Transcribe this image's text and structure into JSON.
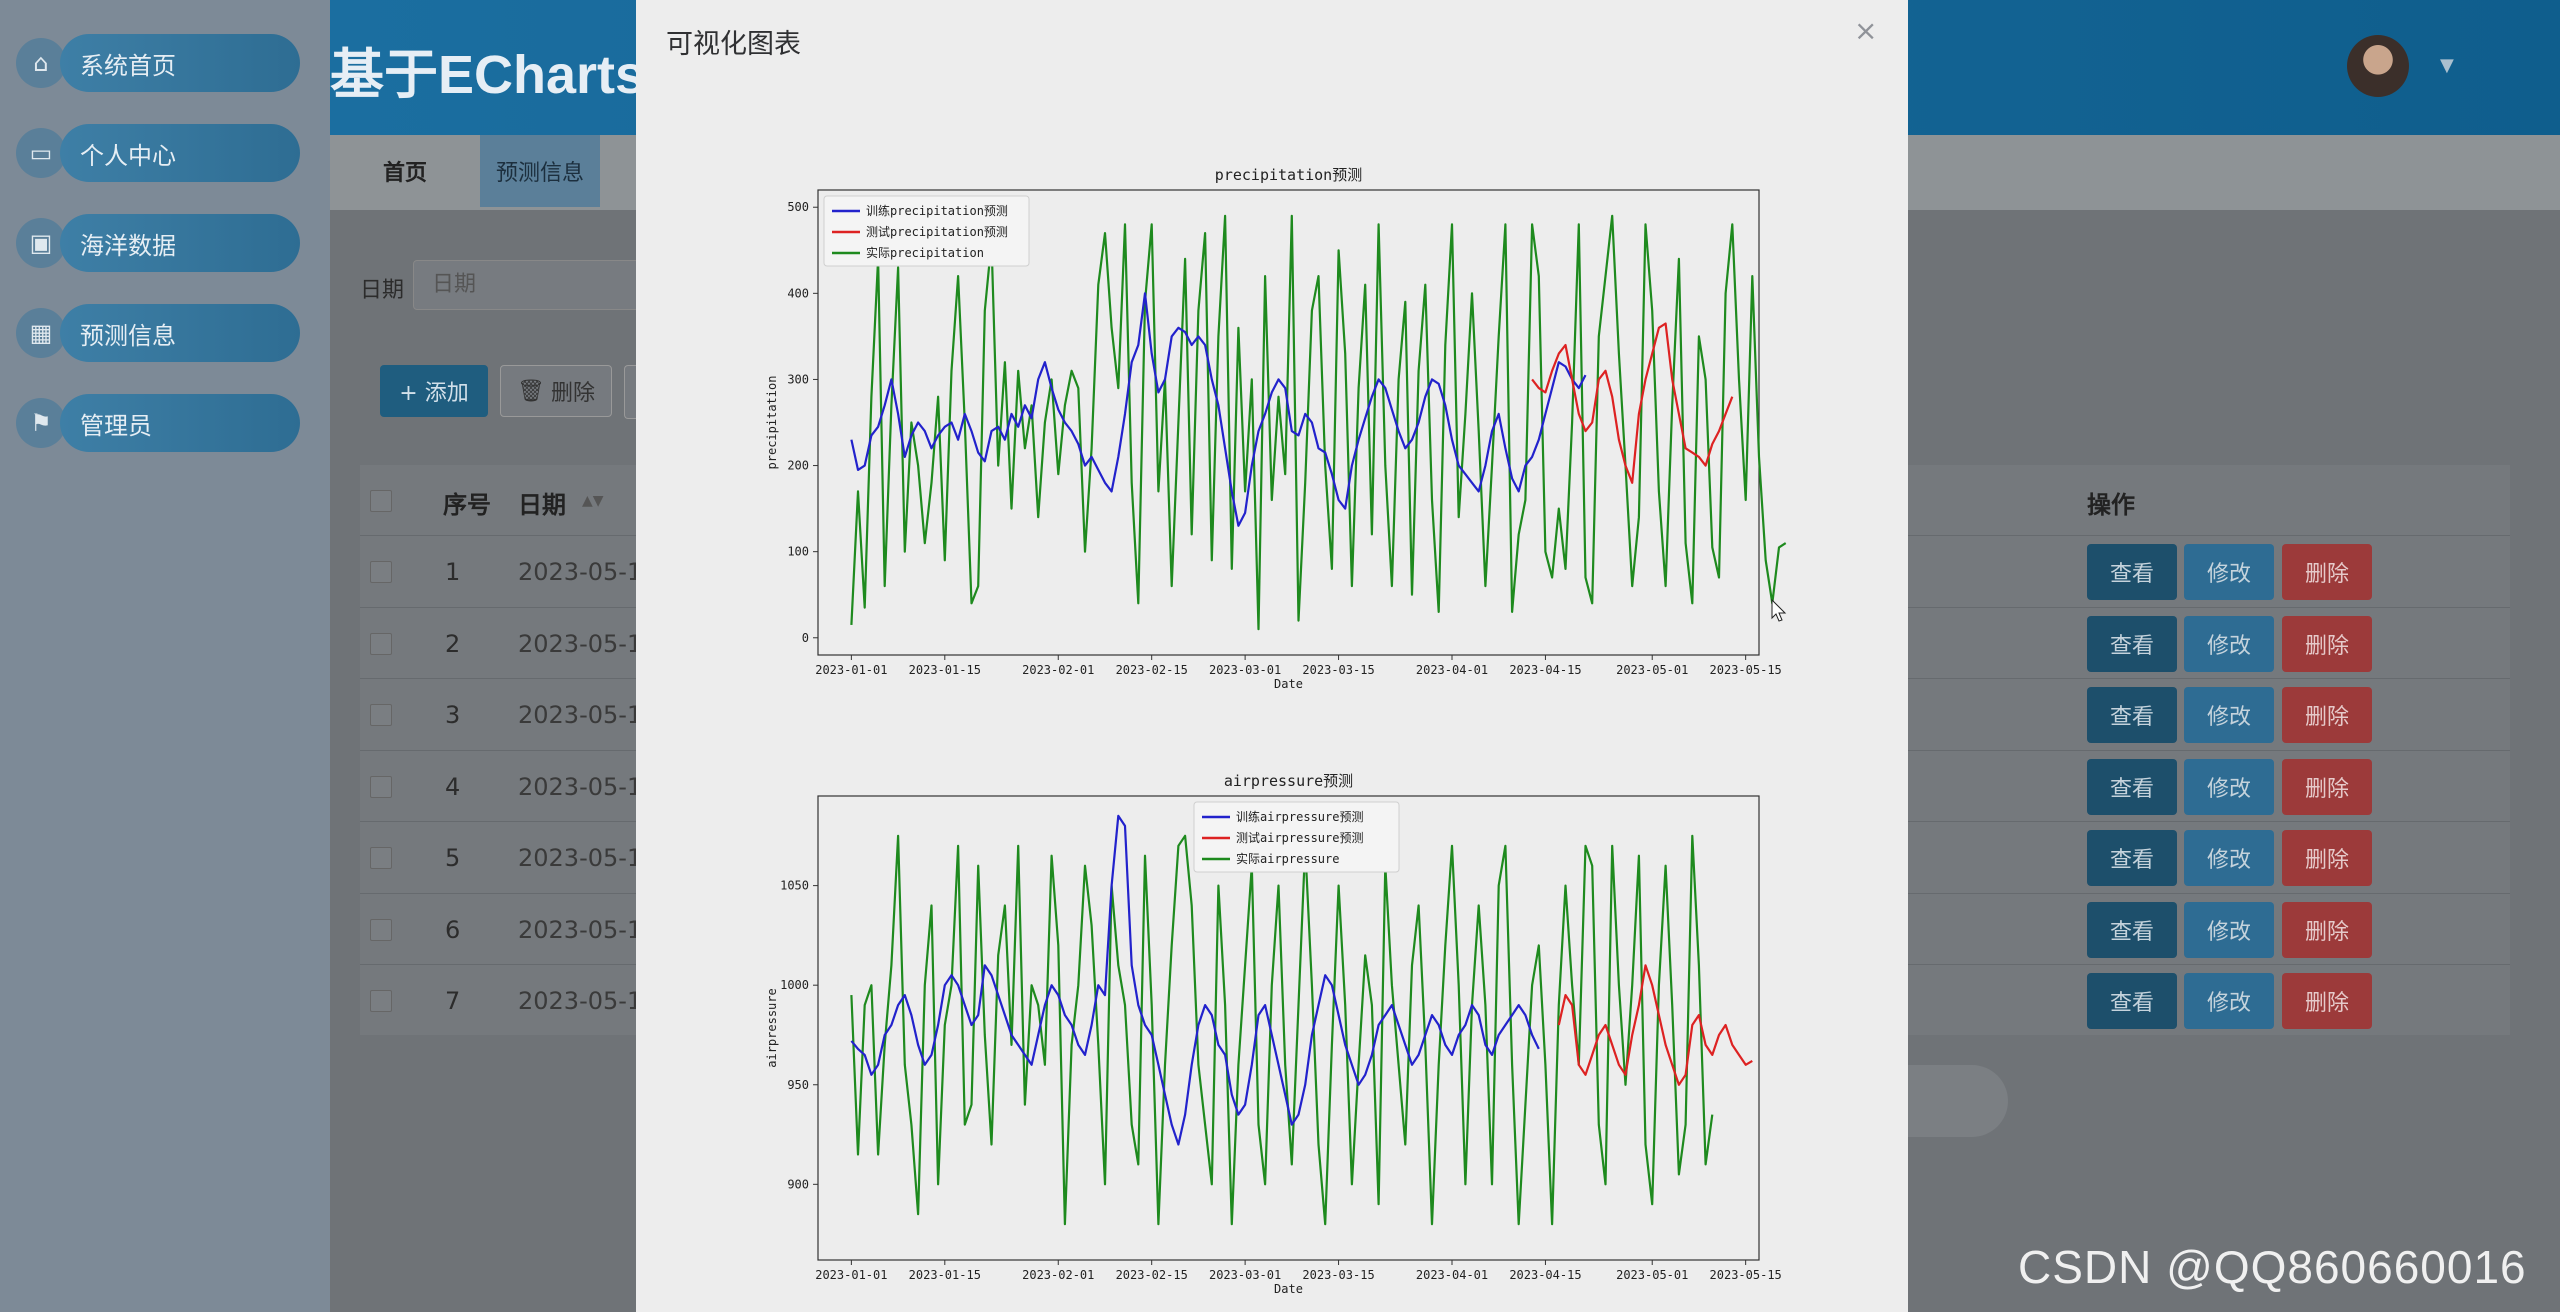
{
  "sidebar": {
    "items": [
      {
        "label": "系统首页",
        "icon": "home-icon"
      },
      {
        "label": "个人中心",
        "icon": "wallet-icon"
      },
      {
        "label": "海洋数据",
        "icon": "clipboard-icon"
      },
      {
        "label": "预测信息",
        "icon": "grid-icon"
      },
      {
        "label": "管理员",
        "icon": "flag-icon"
      }
    ]
  },
  "header": {
    "brand": "基于ECharts",
    "avatar": "user-avatar"
  },
  "tabs": {
    "home": "首页",
    "pred": "预测信息"
  },
  "filter": {
    "label": "日期",
    "placeholder": "日期"
  },
  "toolbar": {
    "add": "+ 添加",
    "delete": "删除"
  },
  "table": {
    "headers": {
      "idx": "序号",
      "date": "日期",
      "action": "操作"
    },
    "rows": [
      {
        "idx": "1",
        "date": "2023-05-1"
      },
      {
        "idx": "2",
        "date": "2023-05-1"
      },
      {
        "idx": "3",
        "date": "2023-05-1"
      },
      {
        "idx": "4",
        "date": "2023-05-1"
      },
      {
        "idx": "5",
        "date": "2023-05-1"
      },
      {
        "idx": "6",
        "date": "2023-05-1"
      },
      {
        "idx": "7",
        "date": "2023-05-1"
      }
    ],
    "actions": {
      "view": "查看",
      "edit": "修改",
      "delete": "删除"
    }
  },
  "modal": {
    "title": "可视化图表",
    "close": "×"
  },
  "watermark": "CSDN @QQ860660016",
  "colors": {
    "train": "#2222cc",
    "test": "#dd2222",
    "actual": "#1e8a1e"
  },
  "chart_data": [
    {
      "type": "line",
      "title": "precipitation预测",
      "xlabel": "Date",
      "ylabel": "precipitation",
      "ylim": [
        -20,
        520
      ],
      "yticks": [
        0,
        100,
        200,
        300,
        400,
        500
      ],
      "xlim": [
        "2022-12-27",
        "2023-05-17"
      ],
      "xticks": [
        "2023-01-01",
        "2023-01-15",
        "2023-02-01",
        "2023-02-15",
        "2023-03-01",
        "2023-03-15",
        "2023-04-01",
        "2023-04-15",
        "2023-05-01",
        "2023-05-15"
      ],
      "legend": {
        "position": "top-left",
        "entries": [
          "训练precipitation预测",
          "测试precipitation预测",
          "实际precipitation"
        ]
      },
      "series": [
        {
          "name": "训练precipitation预测",
          "color": "#2222cc",
          "start": "2023-01-01",
          "values": [
            230,
            195,
            200,
            235,
            245,
            270,
            300,
            260,
            210,
            235,
            250,
            240,
            220,
            235,
            245,
            250,
            230,
            260,
            240,
            215,
            205,
            240,
            245,
            230,
            260,
            245,
            270,
            255,
            300,
            320,
            290,
            265,
            250,
            240,
            225,
            200,
            210,
            195,
            180,
            170,
            210,
            260,
            320,
            340,
            400,
            330,
            285,
            300,
            350,
            360,
            355,
            340,
            350,
            340,
            300,
            270,
            220,
            170,
            130,
            145,
            200,
            240,
            260,
            285,
            300,
            290,
            240,
            235,
            260,
            250,
            220,
            215,
            190,
            160,
            150,
            200,
            230,
            255,
            280,
            300,
            290,
            265,
            240,
            220,
            230,
            250,
            280,
            300,
            295,
            270,
            230,
            200,
            190,
            180,
            170,
            200,
            240,
            260,
            220,
            185,
            170,
            200,
            210,
            230,
            260,
            290,
            320,
            315,
            300,
            290,
            305
          ]
        },
        {
          "name": "测试precipitation预测",
          "color": "#dd2222",
          "start": "2023-04-13",
          "values": [
            300,
            290,
            285,
            310,
            330,
            340,
            300,
            260,
            240,
            250,
            300,
            310,
            280,
            230,
            200,
            180,
            260,
            300,
            330,
            360,
            365,
            300,
            260,
            220,
            215,
            210,
            200,
            225,
            240,
            260,
            280
          ]
        },
        {
          "name": "实际precipitation",
          "color": "#1e8a1e",
          "start": "2023-01-01",
          "values": [
            15,
            170,
            35,
            280,
            440,
            60,
            270,
            430,
            100,
            250,
            200,
            110,
            180,
            280,
            90,
            310,
            420,
            250,
            40,
            60,
            380,
            460,
            200,
            320,
            150,
            310,
            220,
            270,
            140,
            250,
            300,
            190,
            270,
            310,
            290,
            100,
            220,
            410,
            470,
            360,
            290,
            480,
            180,
            40,
            390,
            480,
            170,
            300,
            60,
            250,
            440,
            120,
            380,
            470,
            90,
            350,
            490,
            80,
            360,
            170,
            300,
            10,
            420,
            160,
            280,
            190,
            490,
            20,
            180,
            380,
            420,
            200,
            80,
            450,
            330,
            60,
            290,
            410,
            120,
            480,
            200,
            60,
            300,
            390,
            50,
            310,
            410,
            160,
            30,
            340,
            480,
            140,
            260,
            400,
            240,
            60,
            200,
            350,
            480,
            30,
            120,
            160,
            480,
            420,
            100,
            70,
            150,
            80,
            250,
            480,
            70,
            40,
            350,
            420,
            490,
            330,
            200,
            60,
            140,
            480,
            380,
            170,
            60,
            270,
            440,
            110,
            40,
            350,
            300,
            105,
            70,
            400,
            480,
            300,
            160,
            420,
            210,
            90,
            40,
            105,
            110
          ]
        }
      ]
    },
    {
      "type": "line",
      "title": "airpressure预测",
      "xlabel": "Date",
      "ylabel": "airpressure",
      "ylim": [
        862,
        1095
      ],
      "yticks": [
        900,
        950,
        1000,
        1050
      ],
      "xlim": [
        "2022-12-27",
        "2023-05-17"
      ],
      "xticks": [
        "2023-01-01",
        "2023-01-15",
        "2023-02-01",
        "2023-02-15",
        "2023-03-01",
        "2023-03-15",
        "2023-04-01",
        "2023-04-15",
        "2023-05-01",
        "2023-05-15"
      ],
      "legend": {
        "position": "top-center",
        "entries": [
          "训练airpressure预测",
          "测试airpressure预测",
          "实际airpressure"
        ]
      },
      "series": [
        {
          "name": "训练airpressure预测",
          "color": "#2222cc",
          "start": "2023-01-01",
          "values": [
            972,
            968,
            965,
            955,
            960,
            975,
            980,
            990,
            995,
            985,
            970,
            960,
            965,
            980,
            1000,
            1005,
            1000,
            990,
            980,
            985,
            1010,
            1005,
            995,
            985,
            975,
            970,
            965,
            960,
            975,
            990,
            1000,
            995,
            985,
            980,
            970,
            965,
            980,
            1000,
            995,
            1050,
            1085,
            1080,
            1010,
            990,
            980,
            975,
            960,
            945,
            930,
            920,
            935,
            960,
            980,
            990,
            985,
            970,
            965,
            945,
            935,
            940,
            960,
            985,
            990,
            975,
            960,
            945,
            930,
            935,
            950,
            975,
            990,
            1005,
            1000,
            985,
            970,
            960,
            950,
            955,
            965,
            980,
            985,
            990,
            980,
            970,
            960,
            965,
            975,
            985,
            980,
            970,
            965,
            975,
            980,
            990,
            985,
            970,
            965,
            975,
            980,
            985,
            990,
            985,
            975,
            968
          ]
        },
        {
          "name": "测试airpressure预测",
          "color": "#dd2222",
          "start": "2023-04-17",
          "values": [
            980,
            995,
            990,
            960,
            955,
            965,
            975,
            980,
            970,
            960,
            955,
            975,
            990,
            1010,
            1000,
            985,
            970,
            960,
            950,
            955,
            980,
            985,
            970,
            965,
            975,
            980,
            970,
            965,
            960,
            962
          ]
        },
        {
          "name": "实际airpressure",
          "color": "#1e8a1e",
          "start": "2023-01-01",
          "values": [
            995,
            915,
            990,
            1000,
            915,
            970,
            1010,
            1075,
            960,
            930,
            885,
            1000,
            1040,
            900,
            980,
            1000,
            1070,
            930,
            940,
            1060,
            975,
            920,
            1015,
            1040,
            970,
            1070,
            940,
            1000,
            990,
            960,
            1065,
            1020,
            880,
            970,
            1000,
            1060,
            1030,
            970,
            900,
            1050,
            1010,
            990,
            930,
            910,
            1065,
            990,
            880,
            960,
            1020,
            1070,
            1075,
            1040,
            960,
            930,
            900,
            1050,
            990,
            880,
            960,
            1010,
            1060,
            930,
            900,
            1000,
            1050,
            960,
            910,
            990,
            1070,
            1000,
            920,
            880,
            970,
            1050,
            990,
            900,
            960,
            1015,
            990,
            890,
            1060,
            1000,
            960,
            920,
            1010,
            1040,
            970,
            880,
            960,
            1020,
            1070,
            1000,
            900,
            990,
            1040,
            990,
            900,
            1050,
            1070,
            960,
            880,
            940,
            1000,
            1020,
            960,
            880,
            990,
            1050,
            1000,
            960,
            1070,
            1060,
            930,
            900,
            1070,
            1000,
            950,
            1000,
            1065,
            920,
            890,
            1000,
            1060,
            990,
            905,
            930,
            1075,
            1010,
            910,
            935
          ]
        }
      ]
    }
  ]
}
